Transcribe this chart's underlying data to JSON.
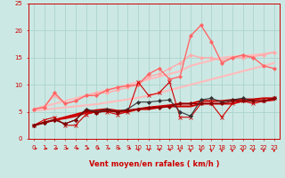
{
  "bg_color": "#cce8e4",
  "grid_color": "#aad4cc",
  "xlabel": "Vent moyen/en rafales ( km/h )",
  "xlim": [
    -0.5,
    23.5
  ],
  "ylim": [
    0,
    25
  ],
  "xticks": [
    0,
    1,
    2,
    3,
    4,
    5,
    6,
    7,
    8,
    9,
    10,
    11,
    12,
    13,
    14,
    15,
    16,
    17,
    18,
    19,
    20,
    21,
    22,
    23
  ],
  "yticks": [
    0,
    5,
    10,
    15,
    20,
    25
  ],
  "series": [
    {
      "x": [
        0,
        1,
        2,
        3,
        4,
        5,
        6,
        7,
        8,
        9,
        10,
        11,
        12,
        13,
        14,
        15,
        16,
        17,
        18,
        19,
        20,
        21,
        22,
        23
      ],
      "y": [
        5.5,
        6.0,
        6.5,
        7.0,
        7.5,
        8.0,
        8.5,
        9.0,
        9.5,
        10.0,
        10.5,
        11.0,
        11.5,
        12.0,
        12.5,
        13.5,
        14.0,
        14.5,
        15.0,
        15.2,
        15.3,
        15.5,
        15.7,
        16.0
      ],
      "color": "#ffbbbb",
      "lw": 1.5,
      "marker": null
    },
    {
      "x": [
        0,
        1,
        2,
        3,
        4,
        5,
        6,
        7,
        8,
        9,
        10,
        11,
        12,
        13,
        14,
        15,
        16,
        17,
        18,
        19,
        20,
        21,
        22,
        23
      ],
      "y": [
        5.2,
        5.4,
        5.6,
        5.8,
        6.0,
        6.2,
        6.4,
        6.7,
        7.0,
        7.3,
        7.6,
        8.0,
        8.5,
        9.0,
        9.5,
        10.0,
        10.5,
        11.0,
        11.5,
        12.0,
        12.5,
        13.0,
        13.5,
        14.0
      ],
      "color": "#ffbbbb",
      "lw": 1.5,
      "marker": null
    },
    {
      "x": [
        0,
        1,
        2,
        3,
        4,
        5,
        6,
        7,
        8,
        9,
        10,
        11,
        12,
        13,
        14,
        15,
        16,
        17,
        18,
        19,
        20,
        21,
        22,
        23
      ],
      "y": [
        5.5,
        6.0,
        8.0,
        6.5,
        7.0,
        8.0,
        8.5,
        8.5,
        9.0,
        9.5,
        10.0,
        11.5,
        12.0,
        13.0,
        14.0,
        15.5,
        15.0,
        15.0,
        14.5,
        15.0,
        15.0,
        15.2,
        15.5,
        16.0
      ],
      "color": "#ffaaaa",
      "lw": 1.0,
      "marker": "D",
      "ms": 2.0
    },
    {
      "x": [
        0,
        1,
        2,
        3,
        4,
        5,
        6,
        7,
        8,
        9,
        10,
        11,
        12,
        13,
        14,
        15,
        16,
        17,
        18,
        19,
        20,
        21,
        22,
        23
      ],
      "y": [
        5.5,
        5.8,
        8.5,
        6.5,
        7.0,
        8.0,
        8.0,
        9.0,
        9.5,
        9.8,
        10.0,
        12.0,
        13.0,
        11.0,
        11.5,
        19.0,
        21.0,
        18.0,
        14.0,
        15.0,
        15.5,
        15.0,
        13.5,
        13.0
      ],
      "color": "#ff6666",
      "lw": 1.0,
      "marker": "D",
      "ms": 2.0
    },
    {
      "x": [
        0,
        1,
        2,
        3,
        4,
        5,
        6,
        7,
        8,
        9,
        10,
        11,
        12,
        13,
        14,
        15,
        16,
        17,
        18,
        19,
        20,
        21,
        22,
        23
      ],
      "y": [
        2.5,
        3.5,
        4.0,
        2.5,
        2.5,
        4.5,
        5.0,
        5.0,
        4.5,
        5.0,
        10.5,
        8.0,
        8.5,
        10.5,
        4.0,
        4.0,
        6.5,
        6.5,
        4.0,
        6.5,
        7.0,
        6.5,
        7.0,
        7.5
      ],
      "color": "#cc0000",
      "lw": 0.8,
      "marker": "x",
      "ms": 3.0
    },
    {
      "x": [
        0,
        1,
        2,
        3,
        4,
        5,
        6,
        7,
        8,
        9,
        10,
        11,
        12,
        13,
        14,
        15,
        16,
        17,
        18,
        19,
        20,
        21,
        22,
        23
      ],
      "y": [
        2.5,
        3.0,
        3.5,
        4.0,
        4.5,
        5.0,
        5.3,
        5.5,
        5.2,
        5.2,
        5.5,
        5.8,
        6.0,
        6.2,
        6.5,
        6.5,
        7.0,
        7.0,
        7.0,
        7.2,
        7.3,
        7.3,
        7.5,
        7.5
      ],
      "color": "#cc0000",
      "lw": 1.5,
      "marker": null
    },
    {
      "x": [
        0,
        1,
        2,
        3,
        4,
        5,
        6,
        7,
        8,
        9,
        10,
        11,
        12,
        13,
        14,
        15,
        16,
        17,
        18,
        19,
        20,
        21,
        22,
        23
      ],
      "y": [
        2.5,
        3.0,
        3.5,
        3.8,
        4.2,
        4.8,
        5.0,
        5.2,
        5.0,
        5.0,
        5.5,
        5.5,
        5.8,
        6.0,
        6.0,
        6.0,
        6.5,
        6.5,
        6.5,
        6.5,
        7.0,
        7.0,
        7.0,
        7.2
      ],
      "color": "#cc0000",
      "lw": 1.5,
      "marker": null
    },
    {
      "x": [
        0,
        1,
        2,
        3,
        4,
        5,
        6,
        7,
        8,
        9,
        10,
        11,
        12,
        13,
        14,
        15,
        16,
        17,
        18,
        19,
        20,
        21,
        22,
        23
      ],
      "y": [
        2.5,
        3.0,
        3.5,
        2.8,
        3.5,
        5.5,
        5.0,
        5.5,
        5.0,
        5.5,
        6.8,
        6.8,
        7.0,
        7.2,
        5.0,
        4.2,
        7.2,
        7.5,
        6.8,
        7.2,
        7.5,
        7.0,
        7.0,
        7.5
      ],
      "color": "#333333",
      "lw": 0.8,
      "marker": "D",
      "ms": 2.0
    },
    {
      "x": [
        0,
        1,
        2,
        3,
        4,
        5,
        6,
        7,
        8,
        9,
        10,
        11,
        12,
        13,
        14,
        15,
        16,
        17,
        18,
        19,
        20,
        21,
        22,
        23
      ],
      "y": [
        2.5,
        3.0,
        3.5,
        2.8,
        3.5,
        5.3,
        4.8,
        5.2,
        5.0,
        5.3,
        5.5,
        5.8,
        5.8,
        6.0,
        6.5,
        6.5,
        6.5,
        6.5,
        6.5,
        7.0,
        7.0,
        7.0,
        7.0,
        7.5
      ],
      "color": "#880000",
      "lw": 0.8,
      "marker": "D",
      "ms": 2.0
    }
  ],
  "arrow_color": "#cc0000",
  "xlabel_color": "#cc0000",
  "xlabel_fontsize": 6,
  "tick_fontsize": 5,
  "tick_color": "#cc0000",
  "spine_color": "#cc0000"
}
